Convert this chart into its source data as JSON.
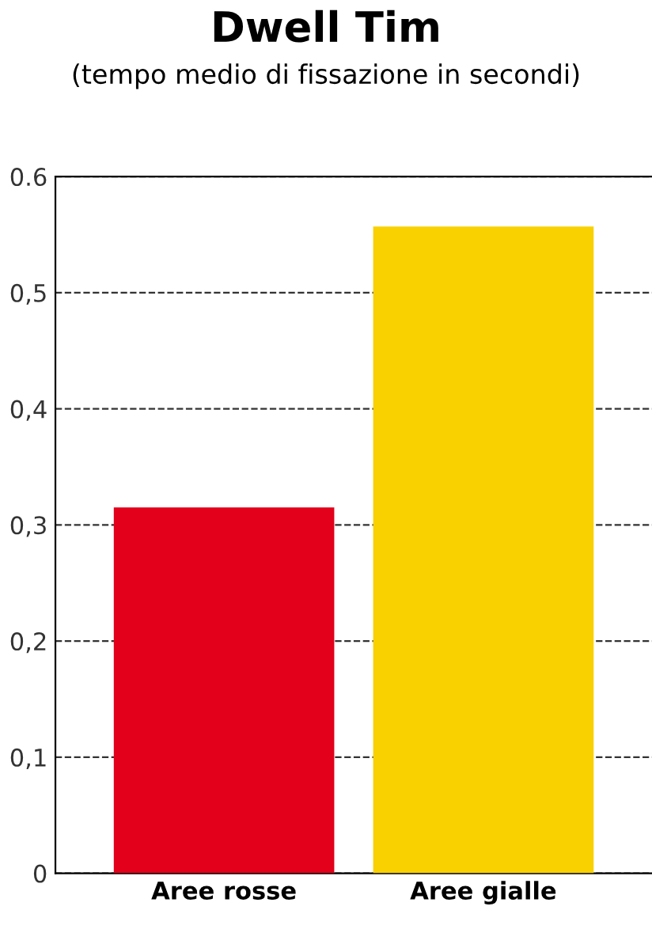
{
  "chart_data": {
    "type": "bar",
    "title": "Dwell Tim",
    "subtitle": "(tempo medio di fissazione in secondi)",
    "categories": [
      "Aree rosse",
      "Aree gialle"
    ],
    "values": [
      0.315,
      0.557
    ],
    "colors": [
      "#e2001a",
      "#f9d000"
    ],
    "ylim": [
      0,
      0.6
    ],
    "yticks": [
      {
        "value": 0,
        "label": "0"
      },
      {
        "value": 0.1,
        "label": "0,1"
      },
      {
        "value": 0.2,
        "label": "0,2"
      },
      {
        "value": 0.3,
        "label": "0,3"
      },
      {
        "value": 0.4,
        "label": "0,4"
      },
      {
        "value": 0.5,
        "label": "0,5"
      },
      {
        "value": 0.6,
        "label": "0.6"
      }
    ],
    "grid": "y",
    "line_style": "dashed",
    "legend": false
  }
}
